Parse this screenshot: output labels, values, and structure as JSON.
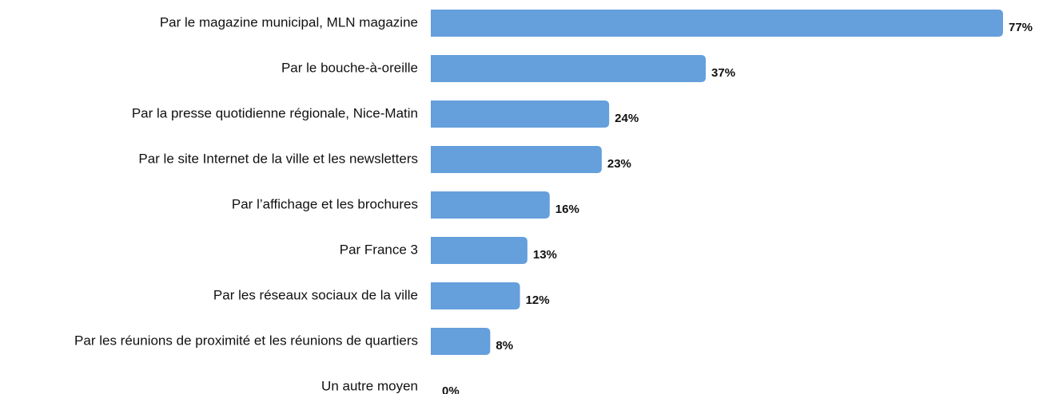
{
  "chart_data": {
    "type": "bar",
    "orientation": "horizontal",
    "categories": [
      "Par le magazine municipal, MLN magazine",
      "Par le bouche-à-oreille",
      "Par la presse quotidienne régionale, Nice-Matin",
      "Par le site Internet de la ville et les newsletters",
      "Par l’affichage et les brochures",
      "Par France 3",
      "Par les réseaux sociaux de la ville",
      "Par les réunions de proximité et les réunions de quartiers",
      "Un autre moyen"
    ],
    "values": [
      77,
      37,
      24,
      23,
      16,
      13,
      12,
      8,
      0
    ],
    "value_labels": [
      "77%",
      "37%",
      "24%",
      "23%",
      "16%",
      "13%",
      "12%",
      "8%",
      "0%"
    ],
    "color": "#659fdc"
  }
}
